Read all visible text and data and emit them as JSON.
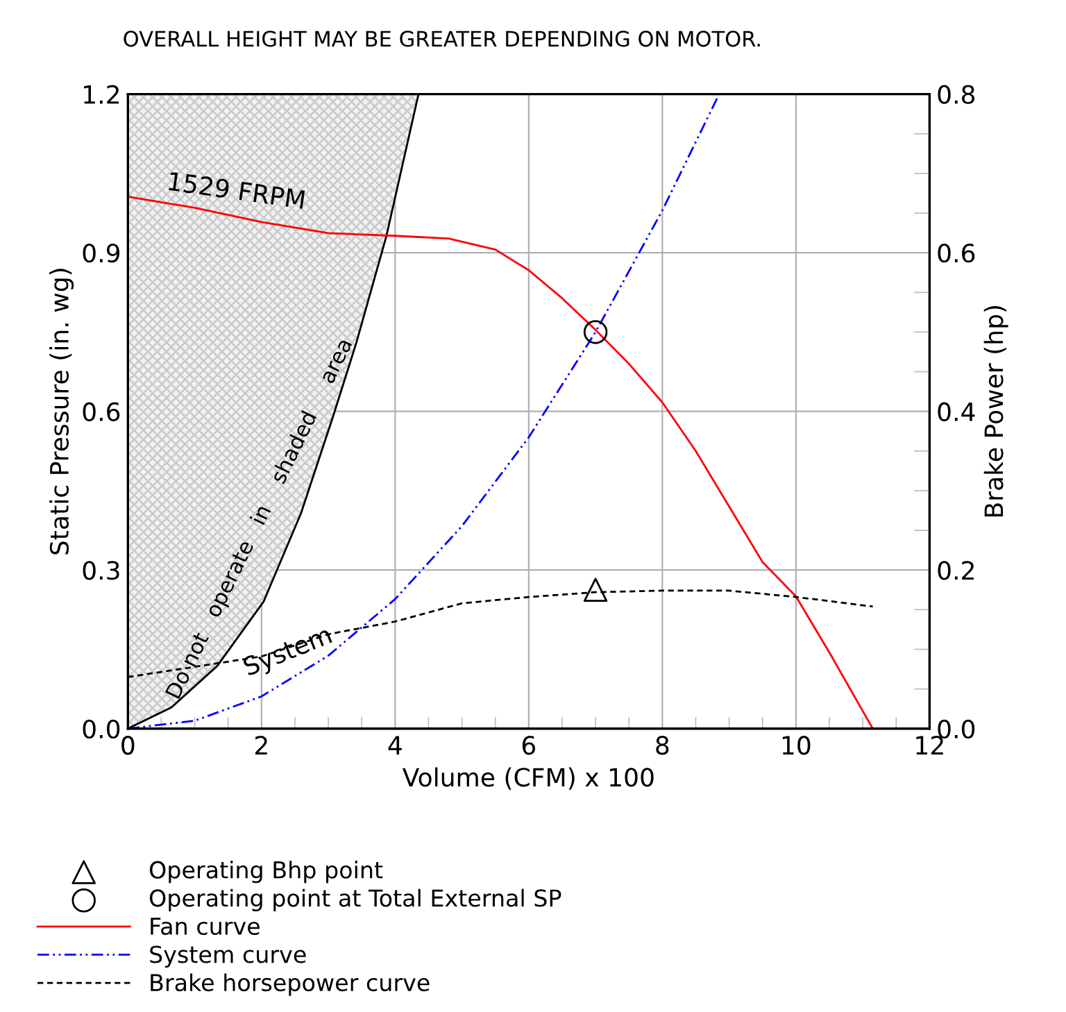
{
  "chart_data": {
    "type": "line",
    "title": "OVERALL HEIGHT MAY BE GREATER DEPENDING ON MOTOR.",
    "xlabel": "Volume (CFM) x 100",
    "ylabel": "Static Pressure (in. wg)",
    "y2label": "Brake Power (hp)",
    "xlim": [
      0,
      12
    ],
    "xticks": [
      0,
      2,
      4,
      6,
      8,
      10,
      12
    ],
    "ylim": [
      0,
      1.2
    ],
    "yticks": [
      {
        "value": 0,
        "label": "0.0"
      },
      0.3,
      0.6,
      0.9,
      1.2
    ],
    "y2lim": [
      0,
      0.8
    ],
    "y2ticks": [
      {
        "value": 0,
        "label": "0.0"
      },
      0.2,
      0.4,
      0.6,
      0.8
    ],
    "grid": true,
    "legend": "bottom left",
    "series": [
      {
        "color": "#000000",
        "x": [
          0,
          0.65,
          1.34,
          2.03,
          2.59,
          3.07,
          3.42,
          3.87,
          4.35
        ],
        "values": [
          0,
          0.04,
          0.119,
          0.24,
          0.407,
          0.59,
          0.73,
          0.932,
          1.2
        ],
        "lower": [
          0,
          0.04,
          0.119,
          0.24,
          0.407,
          0.59,
          0.73,
          0.932,
          1.2
        ],
        "upper": [
          1.2,
          1.2,
          1.2,
          1.2,
          1.2,
          1.2,
          1.2,
          1.2,
          1.2
        ]
      },
      {
        "type": "scatter",
        "name": "Operating Bhp point",
        "color": "#000000",
        "marker": "triangle",
        "axis": "y2",
        "x": [
          7
        ],
        "values": [
          0.175
        ]
      },
      {
        "type": "scatter",
        "name": "Operating point at Total External SP",
        "color": "#000000",
        "marker": "circle",
        "x": [
          7
        ],
        "values": [
          0.75
        ]
      },
      {
        "name": "Fan curve",
        "color": "#ff0000",
        "line_style": "solid",
        "x": [
          0,
          1,
          2,
          3,
          4,
          4.8,
          5.5,
          6,
          6.5,
          7,
          7.5,
          8,
          8.5,
          9,
          9.5,
          10,
          10.5,
          11.15
        ],
        "values": [
          1.006,
          0.985,
          0.958,
          0.937,
          0.932,
          0.927,
          0.906,
          0.867,
          0.814,
          0.754,
          0.69,
          0.617,
          0.525,
          0.42,
          0.315,
          0.25,
          0.144,
          0
        ]
      },
      {
        "name": "System curve",
        "color": "#0000ff",
        "line_style": "dashdot",
        "x": [
          0,
          1,
          2,
          3,
          4,
          5,
          6,
          7,
          8,
          8.85
        ],
        "values": [
          0,
          0.015,
          0.061,
          0.138,
          0.245,
          0.383,
          0.551,
          0.75,
          0.98,
          1.2
        ]
      },
      {
        "name": "Brake horsepower curve",
        "color": "#000000",
        "line_style": "dashed",
        "axis": "y2",
        "x": [
          0,
          2,
          3,
          4,
          5,
          6,
          7,
          8,
          9,
          10,
          11.15
        ],
        "values": [
          0.065,
          0.091,
          0.119,
          0.135,
          0.158,
          0.166,
          0.172,
          0.174,
          0.174,
          0.166,
          0.154
        ]
      }
    ],
    "annotations": [
      "1529 FRPM",
      "Do not   operate   in    shaded     area",
      "System"
    ]
  }
}
